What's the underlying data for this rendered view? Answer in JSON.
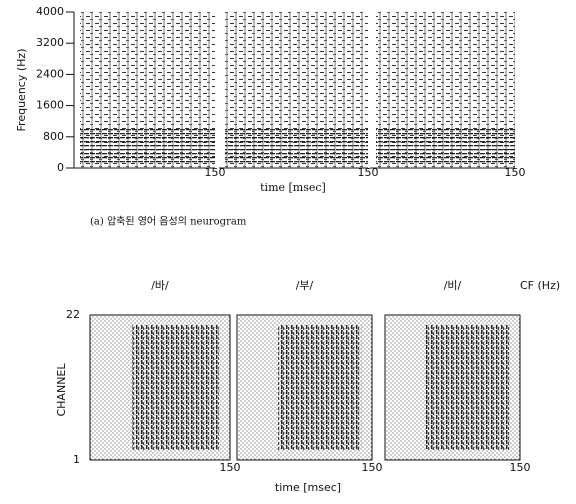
{
  "top": {
    "y_axis_label": "Frequency (Hz)",
    "yticks": [
      0,
      800,
      1600,
      2400,
      3200,
      4000
    ],
    "panels": [
      {
        "x_end": "150"
      },
      {
        "x_end": "150"
      },
      {
        "x_end": "150"
      }
    ],
    "x_axis_label": "time [msec]",
    "caption": "(a) 압축된 영어 음성의 neurogram"
  },
  "bottom": {
    "panels": [
      {
        "title": "/바/",
        "x_end": "150"
      },
      {
        "title": "/부/",
        "x_end": "150"
      },
      {
        "title": "/비/",
        "x_end": "150"
      }
    ],
    "cf_label": "CF (Hz)",
    "y_axis_label": "CHANNEL",
    "yticks": [
      "22",
      "1"
    ],
    "x_axis_label": "time [msec]"
  }
}
